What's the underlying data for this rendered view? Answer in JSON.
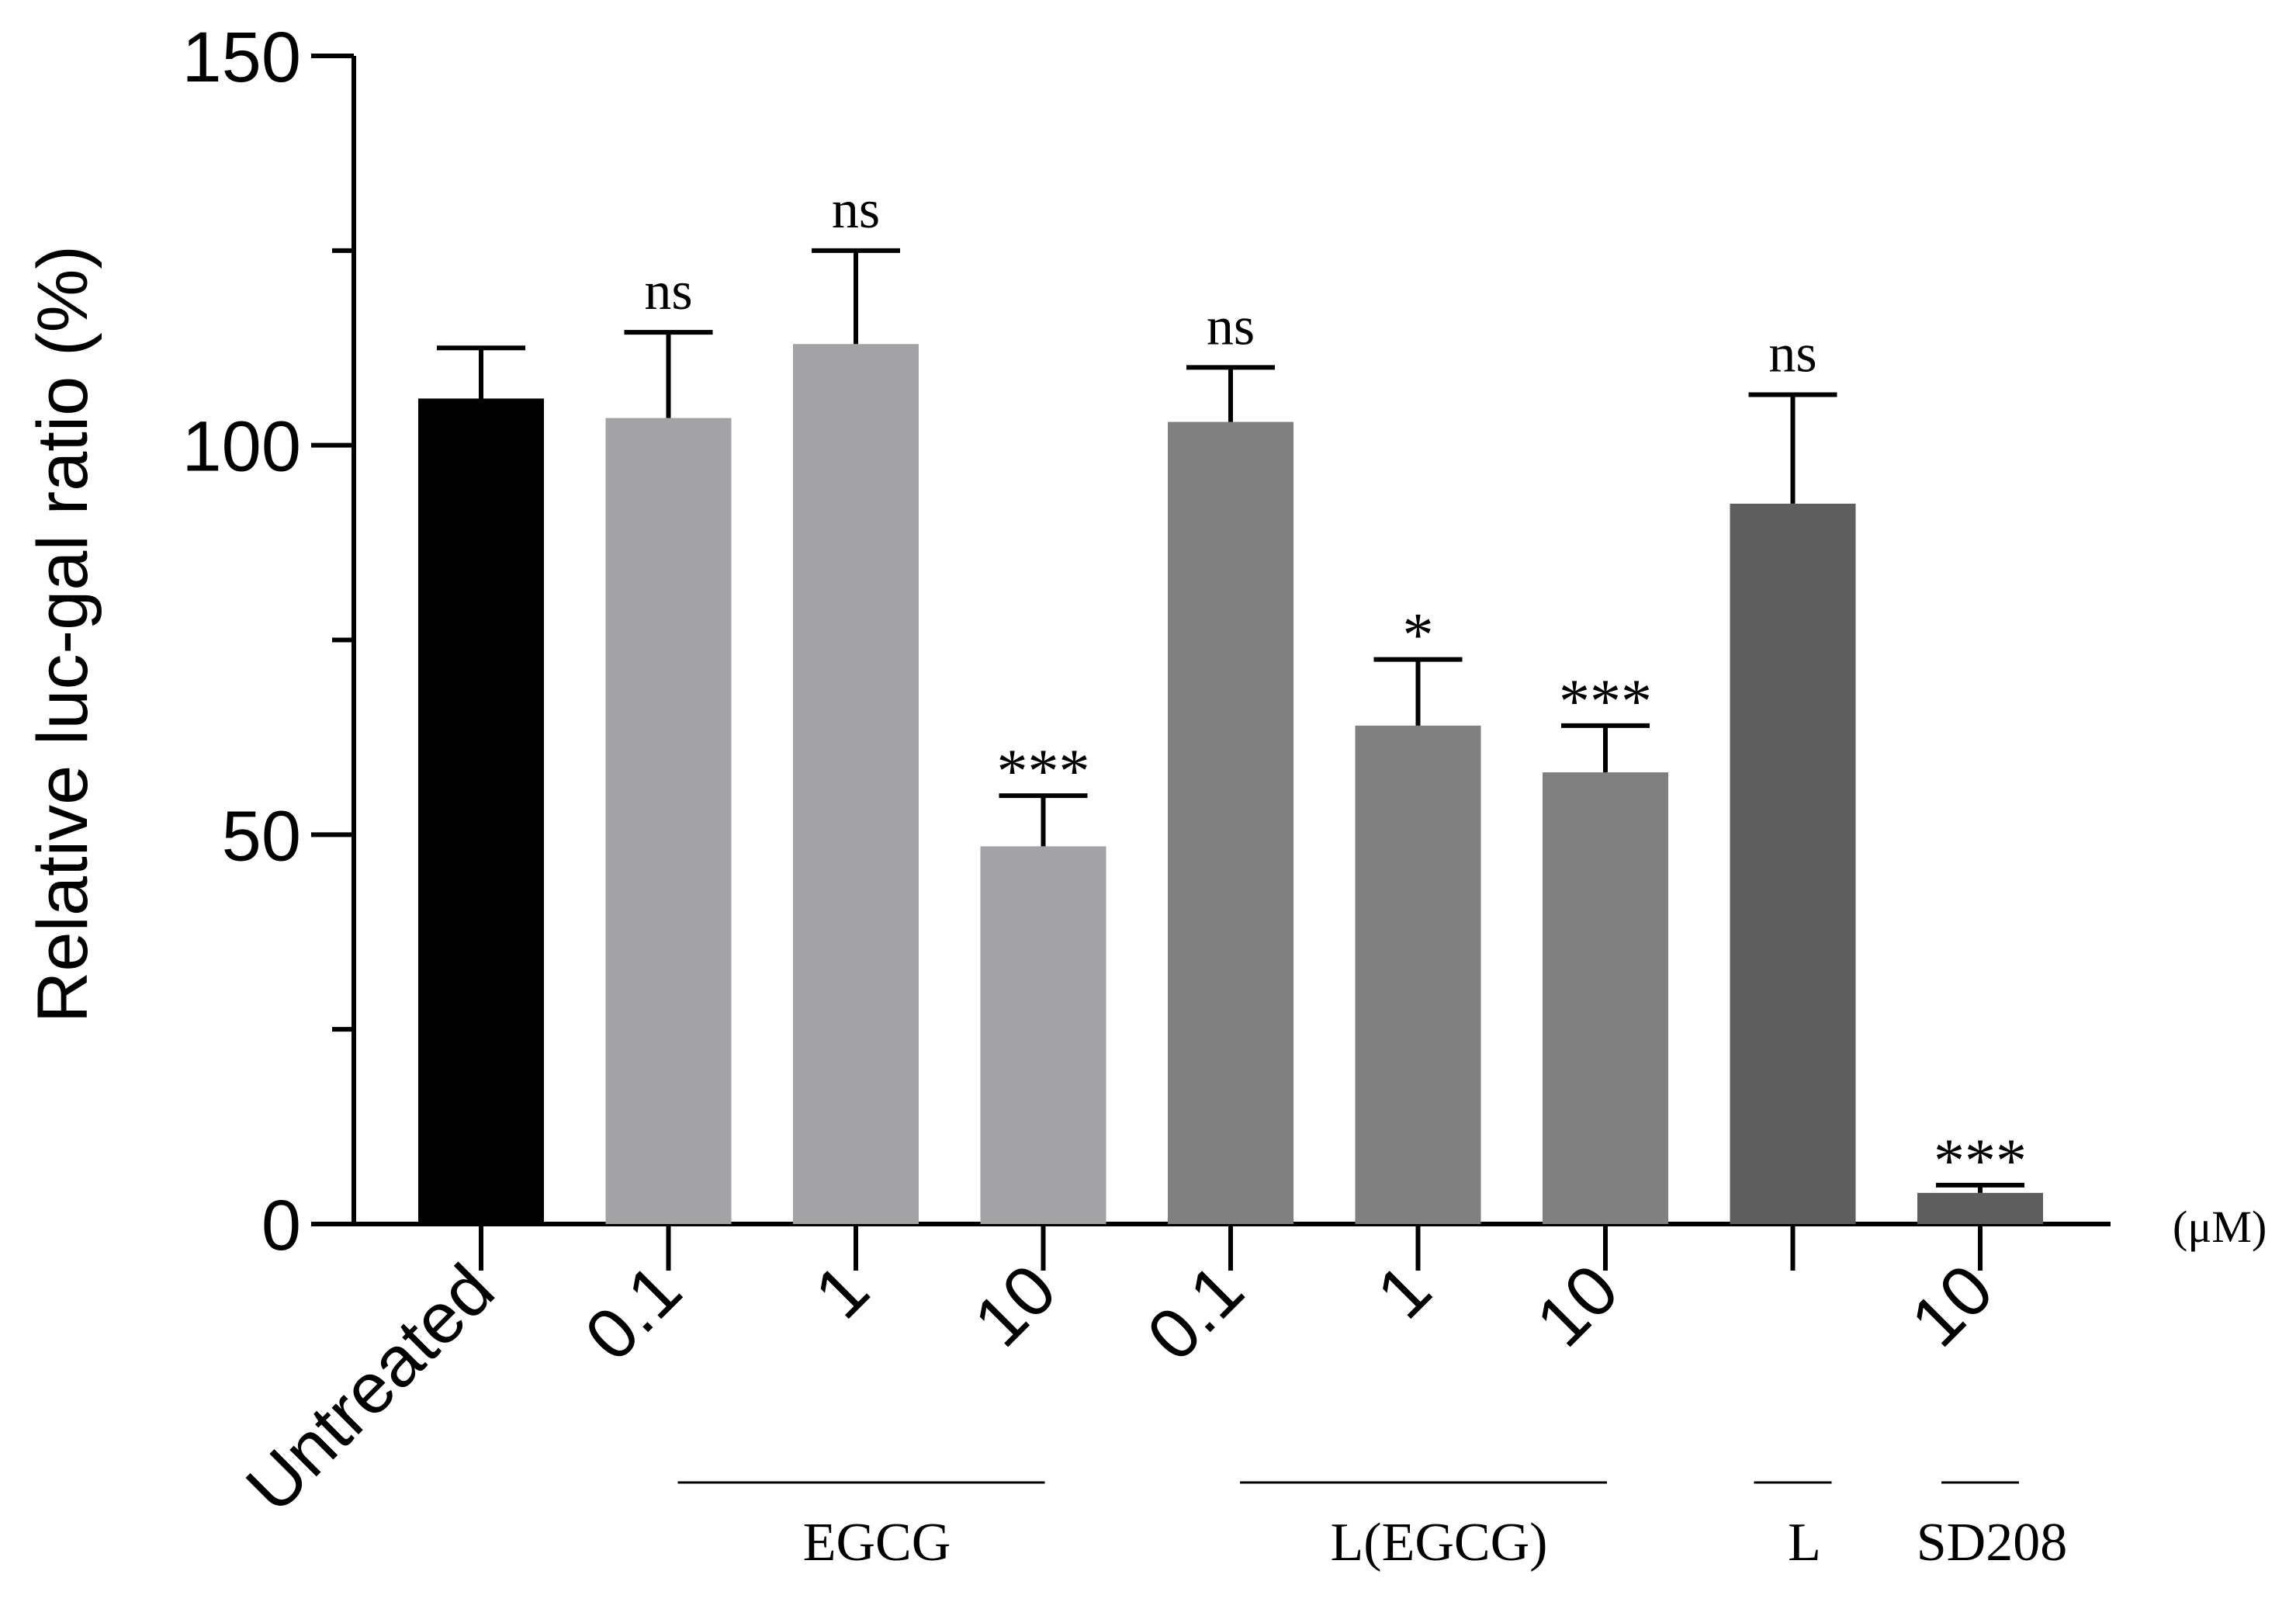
{
  "chart_data": {
    "type": "bar",
    "ylabel": "Relative luc-gal ratio (%)",
    "unit_label": "(μM)",
    "ylim": [
      0,
      150
    ],
    "yticks": [
      0,
      50,
      100,
      150
    ],
    "yticks_labels": [
      "0",
      "50",
      "100",
      "150"
    ],
    "categories": [
      "Untreated",
      "0.1",
      "1",
      "10",
      "0.1",
      "1",
      "10",
      "",
      "10"
    ],
    "values": [
      106,
      103.5,
      113,
      48.5,
      103,
      64,
      58,
      92.5,
      4
    ],
    "errors": [
      6.5,
      11,
      12,
      6.5,
      7,
      8.5,
      6,
      14,
      1
    ],
    "significance": [
      "",
      "ns",
      "ns",
      "***",
      "ns",
      "*",
      "***",
      "ns",
      "***"
    ],
    "bar_colors": [
      "#000000",
      "#a3a3a5",
      "#a3a3a5",
      "#a3a3a5",
      "#808080",
      "#808080",
      "#808080",
      "#5e5e5e",
      "#5e5e5e"
    ],
    "groups": [
      {
        "label": "EGCG",
        "first_bar": 1,
        "last_bar": 3
      },
      {
        "label": "L(EGCG)",
        "first_bar": 4,
        "last_bar": 6
      },
      {
        "label": "L",
        "first_bar": 7,
        "last_bar": 7
      },
      {
        "label": "SD208",
        "first_bar": 8,
        "last_bar": 8
      }
    ]
  }
}
